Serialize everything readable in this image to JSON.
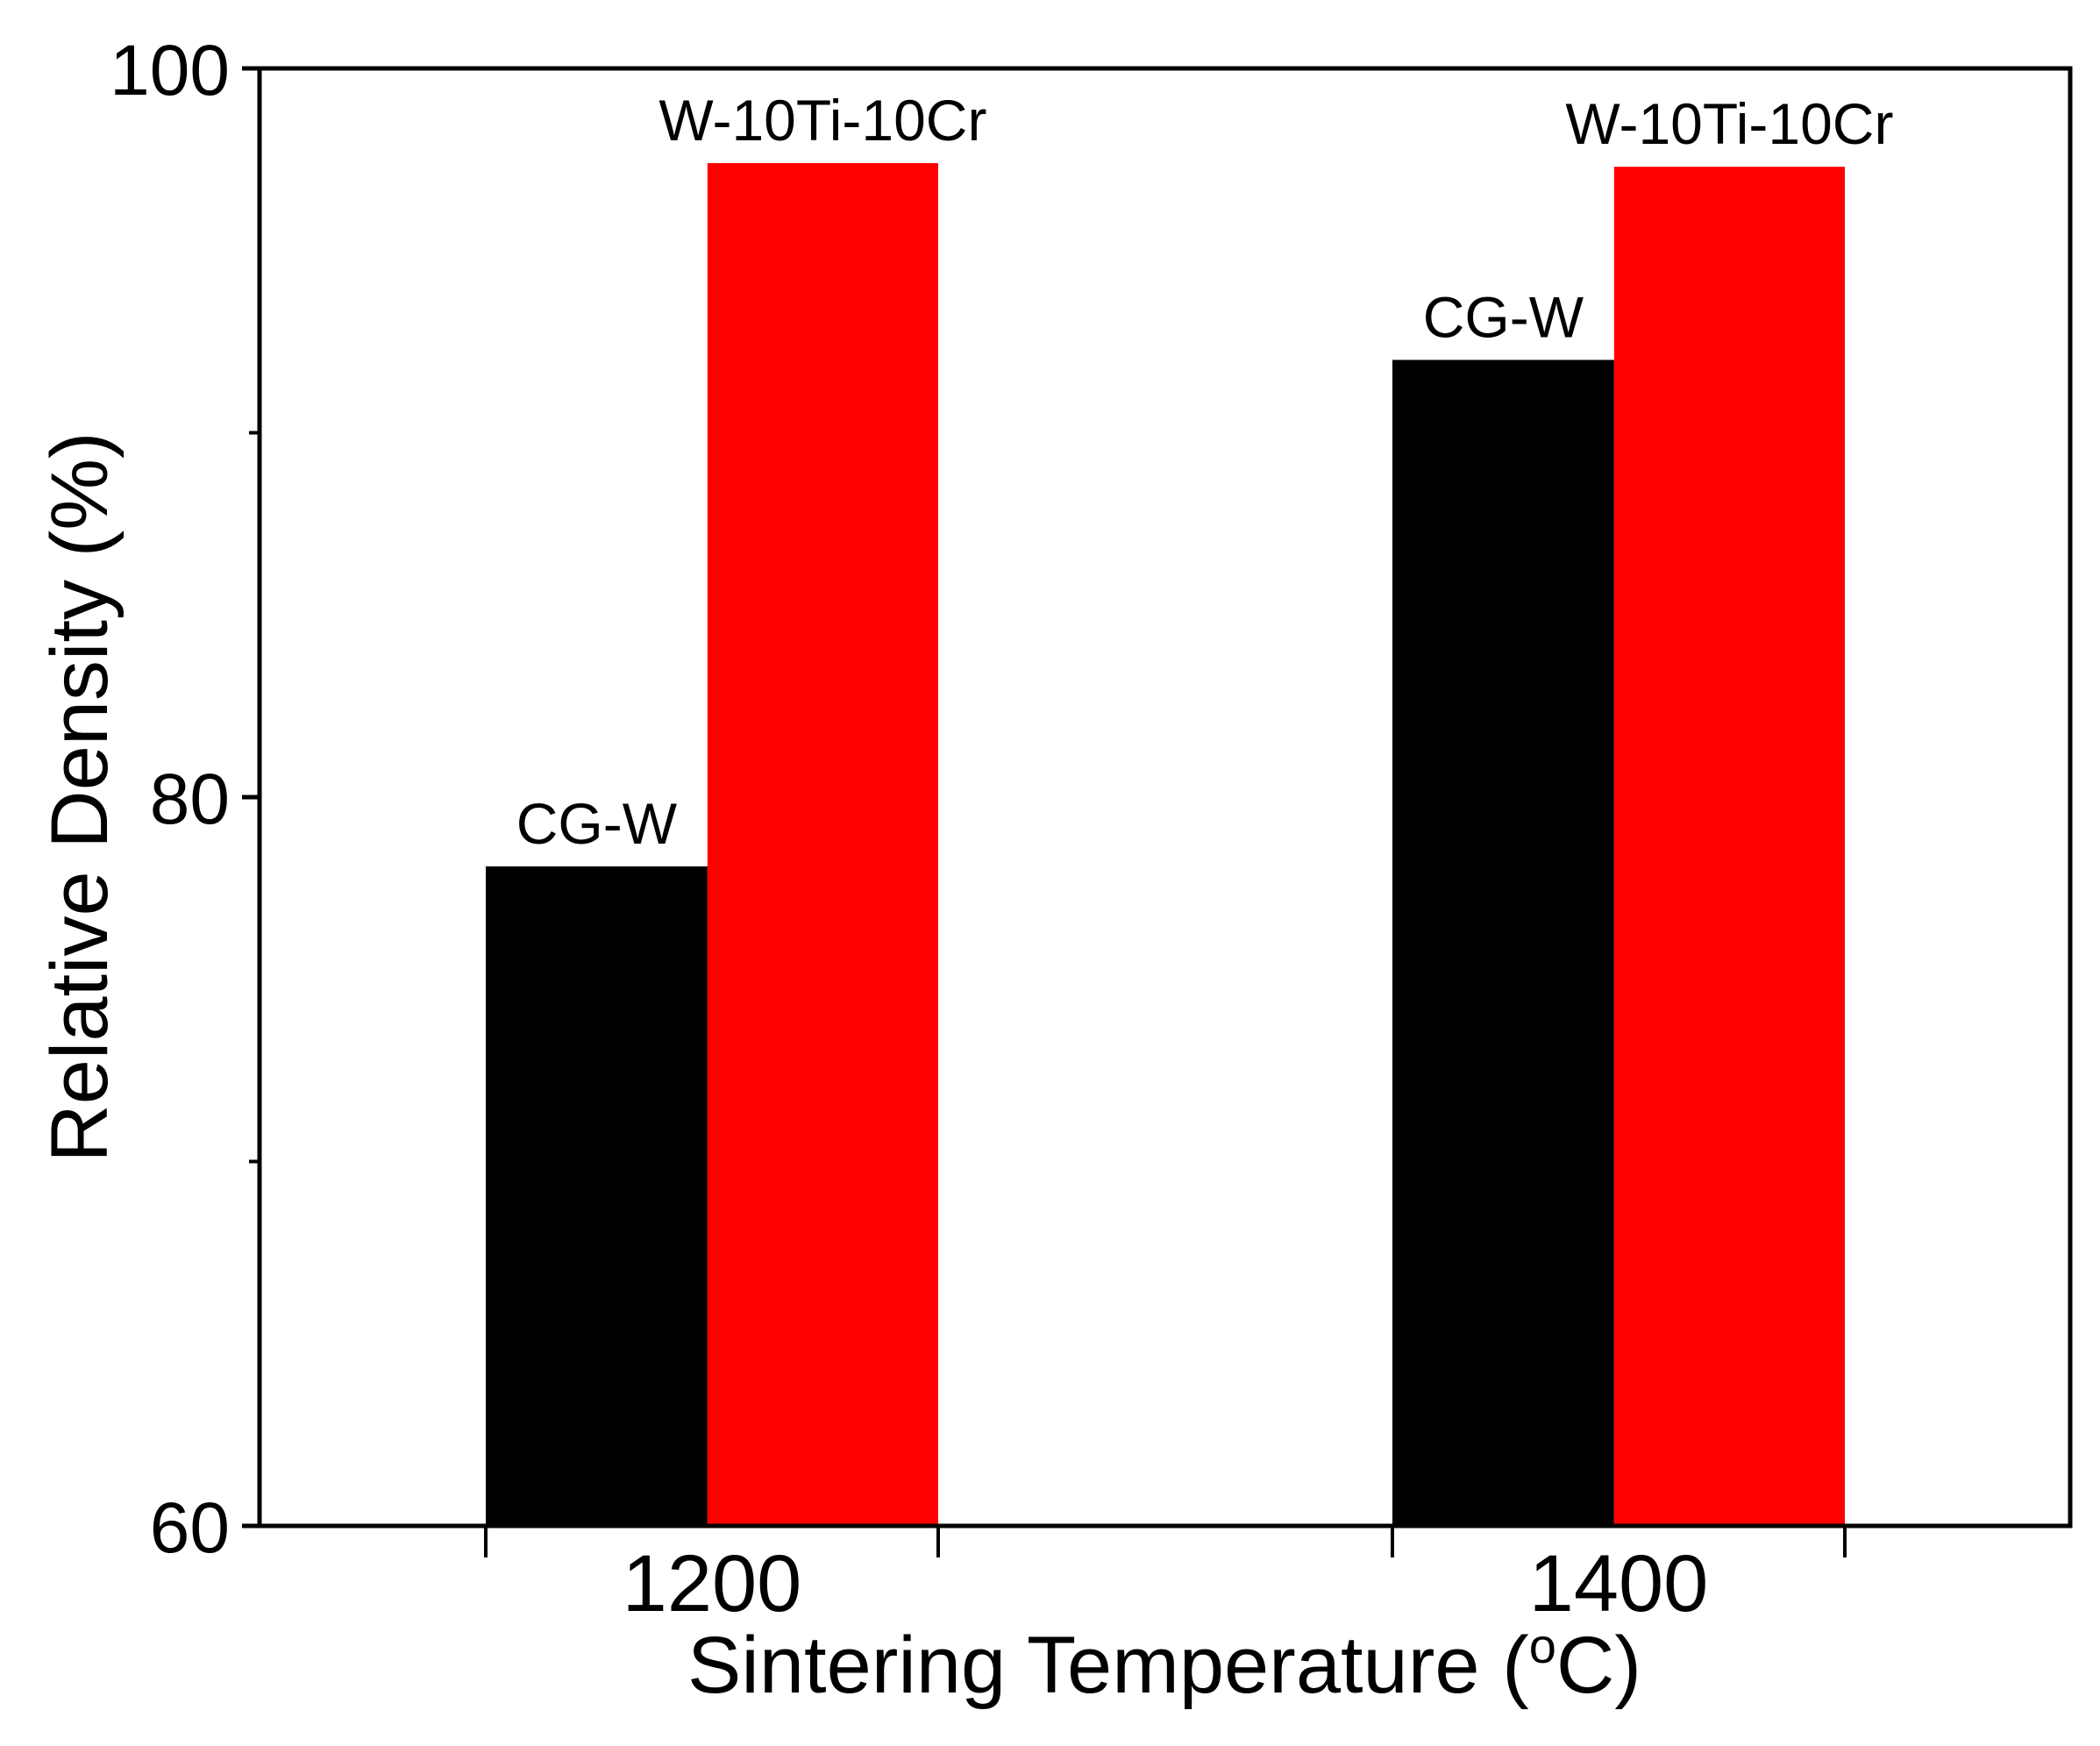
{
  "chart_data": {
    "type": "bar",
    "title": "",
    "categories": [
      "1200",
      "1400"
    ],
    "series": [
      {
        "name": "CG-W",
        "color": "#000000",
        "values": [
          78.1,
          92.0
        ]
      },
      {
        "name": "W-10Ti-10Cr",
        "color": "#ff0000",
        "values": [
          97.4,
          97.3
        ]
      }
    ],
    "bar_labels": [
      "CG-W",
      "W-10Ti-10Cr"
    ],
    "xlabel": "Sintering Temperature (",
    "xlabel_degree": "o",
    "xlabel_unit": "C)",
    "ylabel": "Relative Density (%)",
    "ylim": [
      60,
      100
    ],
    "yticks": [
      60,
      80,
      100
    ],
    "yticks_minor": [
      70,
      90
    ],
    "grid": false,
    "legend": "none"
  }
}
